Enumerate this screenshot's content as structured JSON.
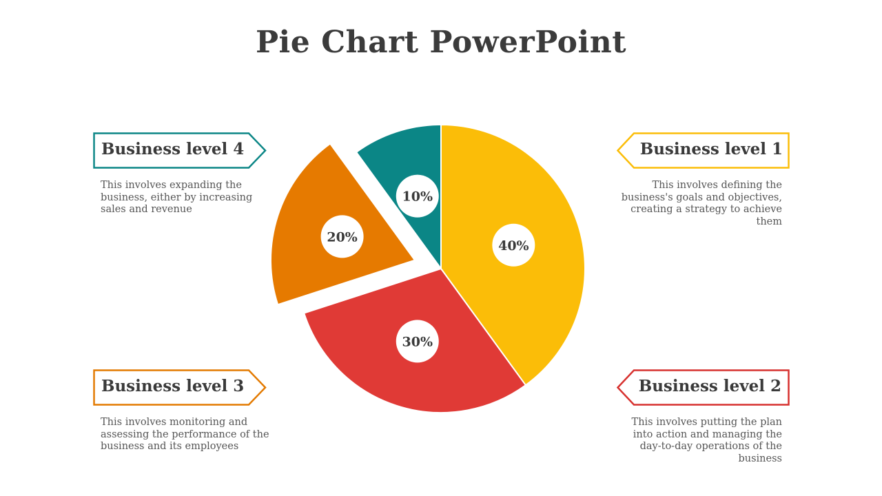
{
  "title": "Pie Chart PowerPoint",
  "chart_data": {
    "type": "pie",
    "title": "Pie Chart PowerPoint",
    "slices": [
      {
        "label": "Business level 1",
        "value": 40,
        "display": "40%",
        "color": "#fbbd08",
        "exploded": false
      },
      {
        "label": "Business level 2",
        "value": 30,
        "display": "30%",
        "color": "#e03a36",
        "exploded": false
      },
      {
        "label": "Business level 3",
        "value": 20,
        "display": "20%",
        "color": "#e67a00",
        "exploded": true
      },
      {
        "label": "Business level 4",
        "value": 10,
        "display": "10%",
        "color": "#0b8686",
        "exploded": false
      }
    ]
  },
  "levels": {
    "l1": {
      "title": "Business level 1",
      "desc": "This involves defining the business's goals and objectives, creating a strategy to achieve them",
      "color": "#fbbd08"
    },
    "l2": {
      "title": "Business level 2",
      "desc": "This involves putting the plan into action and managing the day-to-day operations of the business",
      "color": "#d7312f"
    },
    "l3": {
      "title": "Business level 3",
      "desc": "This involves monitoring and assessing the performance of the business and its employees",
      "color": "#e37a00"
    },
    "l4": {
      "title": "Business level 4",
      "desc": "This involves expanding the business, either by increasing sales and revenue",
      "color": "#0b8686"
    }
  }
}
